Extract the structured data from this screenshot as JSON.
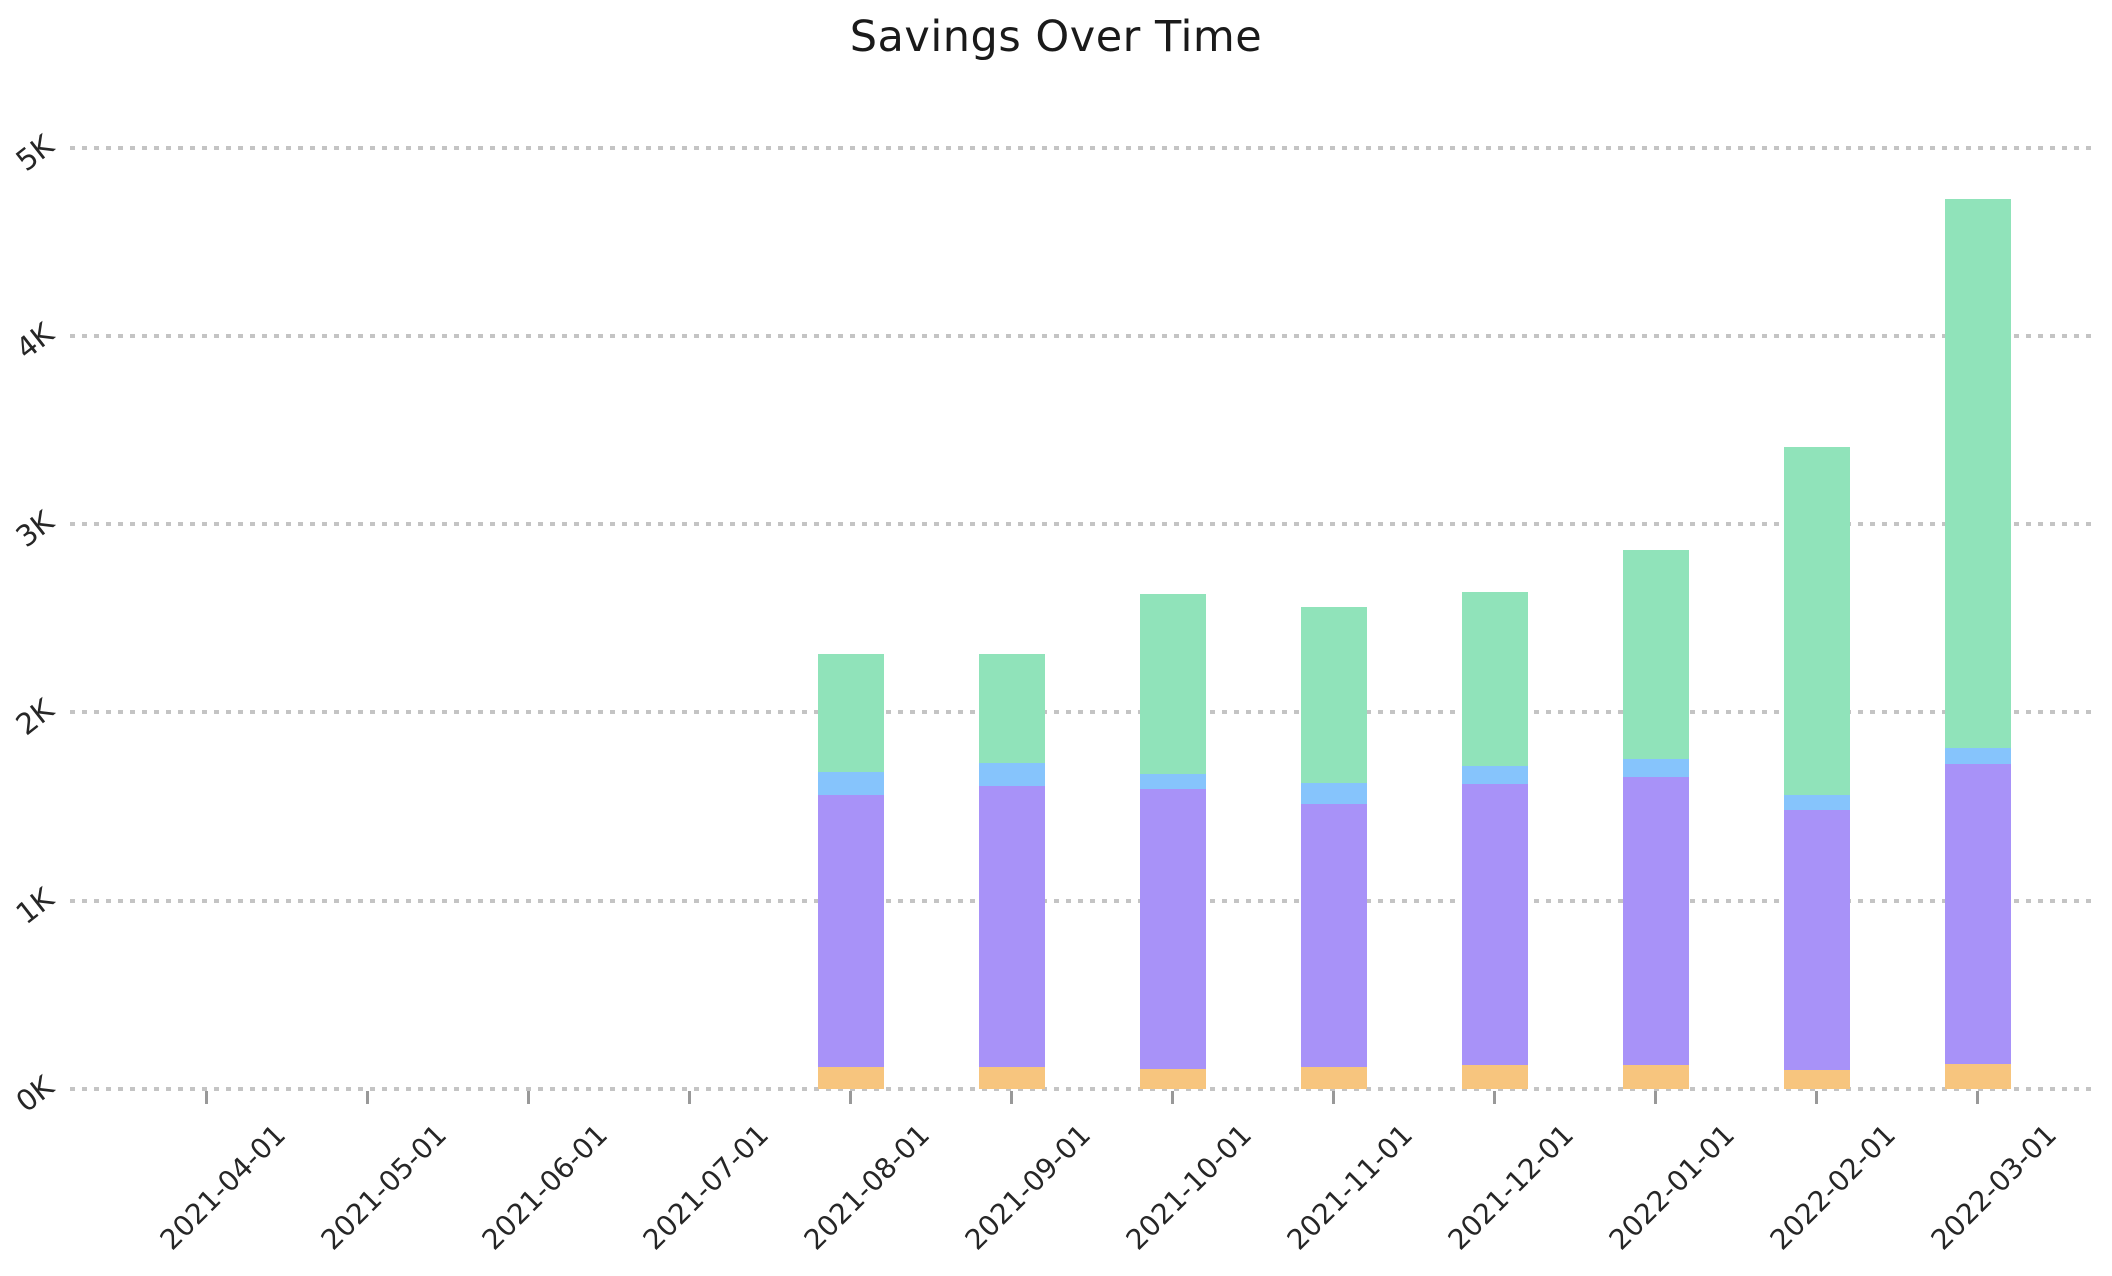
{
  "chart_data": {
    "type": "bar",
    "stacked": true,
    "title": "Savings Over Time",
    "categories": [
      "2021-04-01",
      "2021-05-01",
      "2021-06-01",
      "2021-07-01",
      "2021-08-01",
      "2021-09-01",
      "2021-10-01",
      "2021-11-01",
      "2021-12-01",
      "2022-01-01",
      "2022-02-01",
      "2022-03-01"
    ],
    "series": [
      {
        "name": "orange-bottom-segment",
        "color": "#F7C57E",
        "values": [
          0,
          0,
          0,
          0,
          115,
          115,
          105,
          115,
          125,
          125,
          100,
          135
        ]
      },
      {
        "name": "purple-segment",
        "color": "#A892F8",
        "values": [
          0,
          0,
          0,
          0,
          1445,
          1495,
          1490,
          1400,
          1495,
          1530,
          1380,
          1590
        ]
      },
      {
        "name": "blue-segment",
        "color": "#86C4FC",
        "values": [
          0,
          0,
          0,
          0,
          125,
          120,
          80,
          110,
          95,
          100,
          80,
          85
        ]
      },
      {
        "name": "green-top-segment",
        "color": "#90E3BA",
        "values": [
          0,
          0,
          0,
          0,
          625,
          580,
          955,
          935,
          925,
          1110,
          1850,
          2915
        ]
      }
    ],
    "stack_totals": [
      0,
      0,
      0,
      0,
      2310,
      2310,
      2630,
      2560,
      2640,
      2865,
      3410,
      4725
    ],
    "y_axis": {
      "tick_labels": [
        "0K",
        "1K",
        "2K",
        "3K",
        "4K",
        "5K"
      ],
      "tick_values": [
        0,
        1000,
        2000,
        3000,
        4000,
        5000
      ],
      "range": [
        0,
        5300
      ]
    },
    "x_axis": {
      "tick_label_rotation_deg": 45
    },
    "grid": {
      "orientation": "horizontal",
      "style": "dotted"
    },
    "legend": "none"
  },
  "styles": {
    "background": "#FFFFFF",
    "grid_color": "#C4C4C4",
    "tick_mark_color": "#999999",
    "tick_label_color": "#262626",
    "title_color": "#1A1A1A"
  }
}
